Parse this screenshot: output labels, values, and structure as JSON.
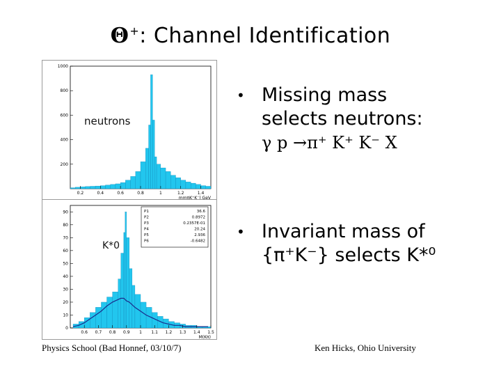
{
  "slide": {
    "title_symbol": "Θ",
    "title_sup": "+",
    "title_text": ": Channel Identification",
    "bullets": [
      {
        "line1": "Missing mass",
        "line2": "selects neutrons:",
        "formula": "γ p →π⁺ K⁺ K⁻ X"
      },
      {
        "line1": "Invariant mass of",
        "line2": "{π⁺K⁻} selects K*⁰"
      }
    ],
    "footer_left": "Physics School (Bad Honnef, 03/10/7)",
    "footer_right": "Ken Hicks, Ohio University"
  },
  "chart_data": [
    {
      "type": "bar",
      "label": "neutrons",
      "xlabel": "mmπK⁺K⁻) GeV",
      "xlim": [
        0.1,
        1.5
      ],
      "ylim": [
        0,
        1000
      ],
      "xticks": [
        "0.2",
        "0.4",
        "0.6",
        "0.8",
        "1",
        "1.2",
        "1.4"
      ],
      "yticks": [
        "200",
        "400",
        "600",
        "800",
        "1000"
      ],
      "x": [
        0.1,
        0.15,
        0.2,
        0.25,
        0.3,
        0.35,
        0.4,
        0.45,
        0.5,
        0.55,
        0.6,
        0.65,
        0.7,
        0.75,
        0.8,
        0.85,
        0.88,
        0.9,
        0.92,
        0.94,
        0.96,
        1.0,
        1.05,
        1.1,
        1.15,
        1.2,
        1.25,
        1.3,
        1.35,
        1.4,
        1.45
      ],
      "values": [
        8,
        12,
        15,
        18,
        20,
        22,
        25,
        30,
        35,
        40,
        50,
        70,
        100,
        140,
        220,
        330,
        520,
        930,
        560,
        260,
        200,
        170,
        140,
        110,
        90,
        70,
        55,
        45,
        35,
        25,
        20
      ]
    },
    {
      "type": "bar",
      "label": "K*0",
      "xlabel": "M(Kπ)",
      "xlim": [
        0.5,
        1.5
      ],
      "ylim": [
        0,
        95
      ],
      "xticks": [
        "0.6",
        "0.7",
        "0.8",
        "0.9",
        "1",
        "1.1",
        "1.2",
        "1.3",
        "1.4",
        "1.5"
      ],
      "yticks": [
        "0",
        "10",
        "20",
        "30",
        "40",
        "50",
        "60",
        "70",
        "80",
        "90"
      ],
      "x": [
        0.52,
        0.56,
        0.6,
        0.64,
        0.68,
        0.72,
        0.76,
        0.8,
        0.84,
        0.86,
        0.88,
        0.89,
        0.9,
        0.92,
        0.94,
        0.96,
        1.0,
        1.04,
        1.08,
        1.12,
        1.16,
        1.2,
        1.24,
        1.28,
        1.32,
        1.36,
        1.4,
        1.44,
        1.48
      ],
      "values": [
        3,
        5,
        8,
        12,
        16,
        20,
        24,
        28,
        38,
        58,
        74,
        90,
        70,
        46,
        33,
        26,
        20,
        16,
        12,
        9,
        7,
        5,
        4,
        3,
        2,
        2,
        1,
        1,
        1
      ],
      "fit": [
        1,
        2,
        4,
        7,
        10,
        13,
        17,
        20,
        22,
        23,
        23,
        22,
        21,
        20,
        18,
        16,
        13,
        10,
        8,
        6,
        4,
        3,
        2,
        2,
        1,
        1,
        1,
        1,
        1
      ],
      "stats_box": [
        {
          "name": "P1",
          "value": "36.6"
        },
        {
          "name": "P2",
          "value": "0.8972"
        },
        {
          "name": "P3",
          "value": "0.2357E-01"
        },
        {
          "name": "P4",
          "value": "20.24"
        },
        {
          "name": "P5",
          "value": "2.936"
        },
        {
          "name": "P6",
          "value": "-0.6482"
        }
      ]
    }
  ],
  "colors": {
    "fill": "#22c6ee",
    "outline": "#0a7fb3",
    "fit": "#1a2c8c"
  }
}
